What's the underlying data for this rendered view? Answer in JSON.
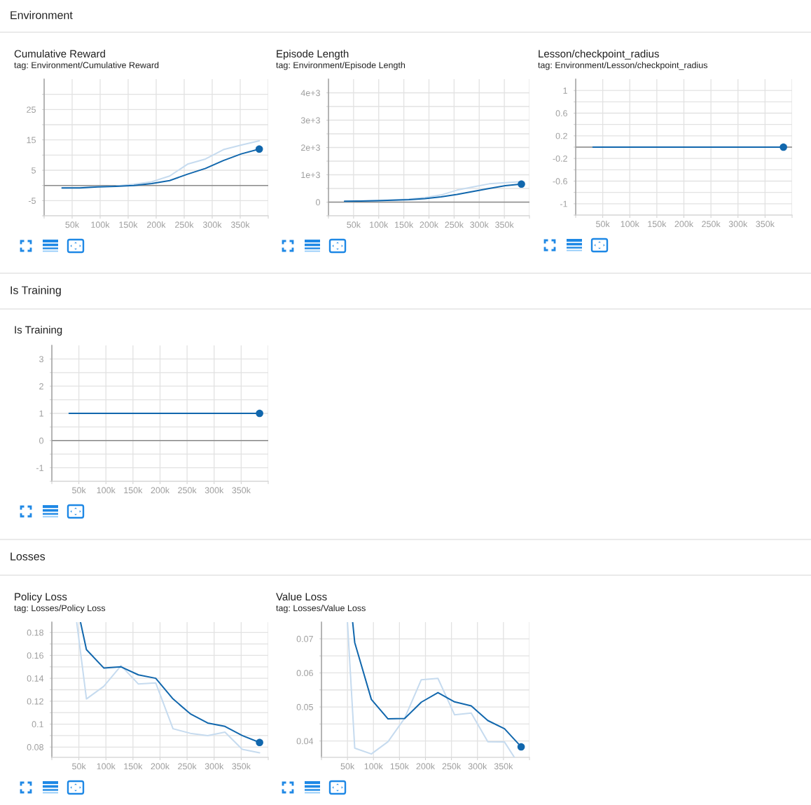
{
  "chart_data": [
    {
      "type": "other",
      "title": "Environment"
    },
    {
      "type": "line",
      "title": "Cumulative Reward",
      "subtitle": "tag: Environment/Cumulative Reward",
      "x": [
        32000,
        64000,
        96000,
        128000,
        160000,
        192000,
        224000,
        256000,
        288000,
        320000,
        352000,
        384000
      ],
      "series": [
        {
          "color": "#c6dbef",
          "values": [
            -0.8,
            -0.7,
            -0.4,
            -0.2,
            0.4,
            1.2,
            3.1,
            7.0,
            8.7,
            11.8,
            13.3,
            14.7
          ]
        },
        {
          "color": "#1167ad",
          "values": [
            -0.8,
            -0.8,
            -0.5,
            -0.3,
            0.0,
            0.6,
            1.6,
            3.7,
            5.6,
            8.2,
            10.4,
            12.0
          ]
        },
        {
          "type": "scatter",
          "marker": "circle",
          "color": "#1167ad",
          "x": [
            384000
          ],
          "values": [
            12.0
          ]
        }
      ],
      "xlim": [
        0,
        400000
      ],
      "xticks": [
        {
          "value": 0,
          "label": null
        },
        {
          "value": 50000,
          "label": "50k"
        },
        {
          "value": 100000,
          "label": "100k"
        },
        {
          "value": 150000,
          "label": "150k"
        },
        {
          "value": 200000,
          "label": "200k"
        },
        {
          "value": 250000,
          "label": "250k"
        },
        {
          "value": 300000,
          "label": "300k"
        },
        {
          "value": 350000,
          "label": "350k"
        },
        {
          "value": 400000,
          "label": null
        }
      ],
      "ylim": [
        -10,
        35
      ],
      "yticks": [
        {
          "value": -10,
          "label": null
        },
        -5,
        {
          "value": 0,
          "label": null
        },
        5,
        {
          "value": 10,
          "label": null
        },
        15,
        {
          "value": 20,
          "label": null
        },
        25,
        {
          "value": 30,
          "label": null
        }
      ],
      "grid": true,
      "ref_lines": [
        {
          "axis": "y",
          "value": 0,
          "color": "#8a8a8a"
        }
      ]
    },
    {
      "type": "line",
      "title": "Episode Length",
      "subtitle": "tag: Environment/Episode Length",
      "x": [
        32000,
        64000,
        96000,
        128000,
        160000,
        192000,
        224000,
        256000,
        288000,
        320000,
        352000,
        384000
      ],
      "series": [
        {
          "color": "#c6dbef",
          "values": [
            30,
            40,
            60,
            80,
            110,
            170,
            260,
            440,
            560,
            670,
            710,
            750
          ]
        },
        {
          "color": "#1167ad",
          "values": [
            30,
            40,
            50,
            70,
            90,
            130,
            190,
            280,
            390,
            500,
            600,
            660
          ]
        },
        {
          "type": "scatter",
          "marker": "circle",
          "color": "#1167ad",
          "x": [
            384000
          ],
          "values": [
            660
          ]
        }
      ],
      "xlim": [
        0,
        400000
      ],
      "xticks": [
        {
          "value": 0,
          "label": null
        },
        {
          "value": 50000,
          "label": "50k"
        },
        {
          "value": 100000,
          "label": "100k"
        },
        {
          "value": 150000,
          "label": "150k"
        },
        {
          "value": 200000,
          "label": "200k"
        },
        {
          "value": 250000,
          "label": "250k"
        },
        {
          "value": 300000,
          "label": "300k"
        },
        {
          "value": 350000,
          "label": "350k"
        },
        {
          "value": 400000,
          "label": null
        }
      ],
      "ylim": [
        -500,
        4500
      ],
      "yticks": [
        {
          "value": -500,
          "label": null
        },
        0,
        {
          "value": 500,
          "label": null
        },
        {
          "value": 1000,
          "label": "1e+3"
        },
        {
          "value": 1500,
          "label": null
        },
        {
          "value": 2000,
          "label": "2e+3"
        },
        {
          "value": 2500,
          "label": null
        },
        {
          "value": 3000,
          "label": "3e+3"
        },
        {
          "value": 3500,
          "label": null
        },
        {
          "value": 4000,
          "label": "4e+3"
        }
      ],
      "grid": true,
      "ref_lines": [
        {
          "axis": "y",
          "value": 0,
          "color": "#8a8a8a"
        }
      ]
    },
    {
      "type": "line",
      "title": "Lesson/checkpoint_radius",
      "subtitle": "tag: Environment/Lesson/checkpoint_radius",
      "x": [
        32000,
        64000,
        96000,
        128000,
        160000,
        192000,
        224000,
        256000,
        288000,
        320000,
        352000,
        384000
      ],
      "series": [
        {
          "color": "#1167ad",
          "values": [
            0,
            0,
            0,
            0,
            0,
            0,
            0,
            0,
            0,
            0,
            0,
            0
          ]
        },
        {
          "type": "scatter",
          "marker": "circle",
          "color": "#1167ad",
          "x": [
            384000
          ],
          "values": [
            0
          ]
        }
      ],
      "xlim": [
        0,
        400000
      ],
      "xticks": [
        {
          "value": 0,
          "label": null
        },
        {
          "value": 50000,
          "label": "50k"
        },
        {
          "value": 100000,
          "label": "100k"
        },
        {
          "value": 150000,
          "label": "150k"
        },
        {
          "value": 200000,
          "label": "200k"
        },
        {
          "value": 250000,
          "label": "250k"
        },
        {
          "value": 300000,
          "label": "300k"
        },
        {
          "value": 350000,
          "label": "350k"
        },
        {
          "value": 400000,
          "label": null
        }
      ],
      "ylim": [
        -1.2,
        1.2
      ],
      "yticks": [
        {
          "value": -1.2,
          "label": null
        },
        -1,
        {
          "value": -0.8,
          "label": null
        },
        -0.6,
        {
          "value": -0.4,
          "label": null
        },
        -0.2,
        {
          "value": 0,
          "label": null
        },
        0.2,
        {
          "value": 0.4,
          "label": null
        },
        0.6,
        {
          "value": 0.8,
          "label": null
        },
        1
      ],
      "grid": true,
      "ref_lines": [
        {
          "axis": "y",
          "value": 0,
          "color": "#8a8a8a"
        }
      ]
    },
    {
      "type": "other",
      "title": "Is Training"
    },
    {
      "type": "line",
      "title": "Is Training",
      "x": [
        32000,
        64000,
        96000,
        128000,
        160000,
        192000,
        224000,
        256000,
        288000,
        320000,
        352000,
        384000
      ],
      "series": [
        {
          "color": "#1167ad",
          "values": [
            1,
            1,
            1,
            1,
            1,
            1,
            1,
            1,
            1,
            1,
            1,
            1
          ]
        },
        {
          "type": "scatter",
          "marker": "circle",
          "color": "#1167ad",
          "x": [
            384000
          ],
          "values": [
            1
          ]
        }
      ],
      "xlim": [
        0,
        400000
      ],
      "xticks": [
        {
          "value": 0,
          "label": null
        },
        {
          "value": 50000,
          "label": "50k"
        },
        {
          "value": 100000,
          "label": "100k"
        },
        {
          "value": 150000,
          "label": "150k"
        },
        {
          "value": 200000,
          "label": "200k"
        },
        {
          "value": 250000,
          "label": "250k"
        },
        {
          "value": 300000,
          "label": "300k"
        },
        {
          "value": 350000,
          "label": "350k"
        },
        {
          "value": 400000,
          "label": null
        }
      ],
      "ylim": [
        -1.5,
        3.5
      ],
      "yticks": [
        {
          "value": -1.5,
          "label": null
        },
        -1,
        {
          "value": -0.5,
          "label": null
        },
        0,
        {
          "value": 0.5,
          "label": null
        },
        1,
        {
          "value": 1.5,
          "label": null
        },
        2,
        {
          "value": 2.5,
          "label": null
        },
        3
      ],
      "grid": true,
      "ref_lines": [
        {
          "axis": "y",
          "value": 0,
          "color": "#8a8a8a"
        }
      ]
    },
    {
      "type": "other",
      "title": "Losses"
    },
    {
      "type": "line",
      "title": "Policy Loss",
      "subtitle": "tag: Losses/Policy Loss",
      "series": [
        {
          "color": "#c6dbef",
          "x": [
            46000,
            64000,
            96000,
            128000,
            160000,
            192000,
            224000,
            256000,
            288000,
            320000,
            352000,
            384000
          ],
          "values": [
            0.189,
            0.122,
            0.133,
            0.151,
            0.135,
            0.136,
            0.096,
            0.092,
            0.09,
            0.093,
            0.078,
            0.075
          ]
        },
        {
          "color": "#1167ad",
          "x": [
            53000,
            64000,
            96000,
            128000,
            160000,
            192000,
            224000,
            256000,
            288000,
            320000,
            352000,
            384000
          ],
          "values": [
            0.189,
            0.165,
            0.149,
            0.15,
            0.143,
            0.14,
            0.122,
            0.109,
            0.101,
            0.098,
            0.09,
            0.084
          ]
        },
        {
          "type": "scatter",
          "marker": "circle",
          "color": "#1167ad",
          "x": [
            384000
          ],
          "values": [
            0.084
          ]
        }
      ],
      "xlim": [
        0,
        400000
      ],
      "xticks": [
        {
          "value": 0,
          "label": null
        },
        {
          "value": 50000,
          "label": "50k"
        },
        {
          "value": 100000,
          "label": "100k"
        },
        {
          "value": 150000,
          "label": "150k"
        },
        {
          "value": 200000,
          "label": "200k"
        },
        {
          "value": 250000,
          "label": "250k"
        },
        {
          "value": 300000,
          "label": "300k"
        },
        {
          "value": 350000,
          "label": "350k"
        },
        {
          "value": 400000,
          "label": null
        }
      ],
      "ylim": [
        0.071,
        0.189
      ],
      "yticks": [
        0.08,
        {
          "value": 0.09,
          "label": null
        },
        0.1,
        {
          "value": 0.11,
          "label": null
        },
        0.12,
        {
          "value": 0.13,
          "label": null
        },
        0.14,
        {
          "value": 0.15,
          "label": null
        },
        0.16,
        {
          "value": 0.17,
          "label": null
        },
        0.18
      ],
      "grid": true
    },
    {
      "type": "line",
      "title": "Value Loss",
      "subtitle": "tag: Losses/Value Loss",
      "series": [
        {
          "color": "#c6dbef",
          "x": [
            50000,
            64000,
            96000,
            128000,
            160000,
            192000,
            224000,
            256000,
            288000,
            320000,
            352000,
            371000
          ],
          "values": [
            0.0749,
            0.0379,
            0.0362,
            0.0398,
            0.0467,
            0.058,
            0.0584,
            0.0477,
            0.0482,
            0.0398,
            0.0397,
            0.0352
          ]
        },
        {
          "color": "#1167ad",
          "x": [
            60000,
            64000,
            96000,
            128000,
            160000,
            192000,
            224000,
            256000,
            288000,
            320000,
            352000,
            384000
          ],
          "values": [
            0.0749,
            0.0689,
            0.0522,
            0.0465,
            0.0466,
            0.0514,
            0.0542,
            0.0515,
            0.0503,
            0.046,
            0.0436,
            0.0383
          ]
        },
        {
          "type": "scatter",
          "marker": "circle",
          "color": "#1167ad",
          "x": [
            384000
          ],
          "values": [
            0.0383
          ]
        }
      ],
      "xlim": [
        0,
        400000
      ],
      "xticks": [
        {
          "value": 0,
          "label": null
        },
        {
          "value": 50000,
          "label": "50k"
        },
        {
          "value": 100000,
          "label": "100k"
        },
        {
          "value": 150000,
          "label": "150k"
        },
        {
          "value": 200000,
          "label": "200k"
        },
        {
          "value": 250000,
          "label": "250k"
        },
        {
          "value": 300000,
          "label": "300k"
        },
        {
          "value": 350000,
          "label": "350k"
        },
        {
          "value": 400000,
          "label": null
        }
      ],
      "ylim": [
        0.0352,
        0.0749
      ],
      "yticks": [
        0.04,
        {
          "value": 0.045,
          "label": null
        },
        0.05,
        {
          "value": 0.055,
          "label": null
        },
        0.06,
        {
          "value": 0.065,
          "label": null
        },
        0.07
      ],
      "grid": true
    }
  ]
}
